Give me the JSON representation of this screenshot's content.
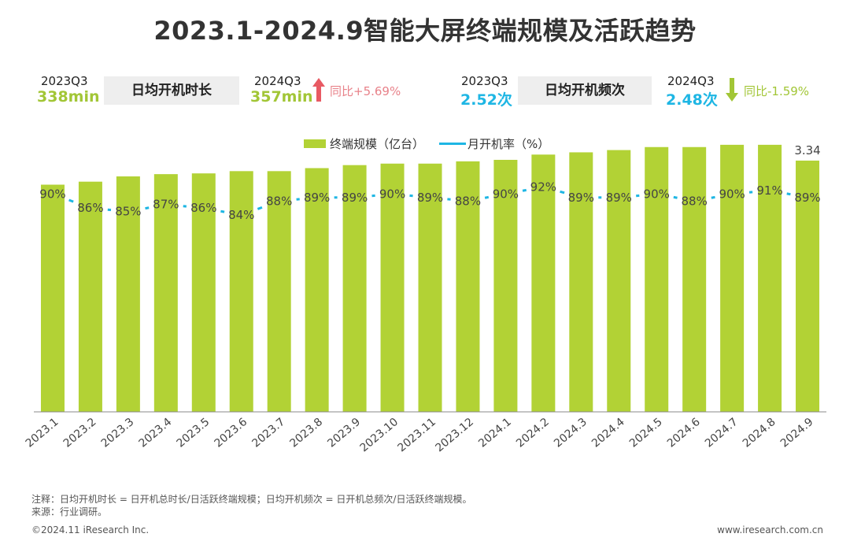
{
  "title": "2023.1-2024.9智能大屏终端规模及活跃趋势",
  "kpis": {
    "duration": {
      "base_period": "2023Q3",
      "base_value": "338min",
      "metric_label": "日均开机时长",
      "current_period": "2024Q3",
      "current_value": "357min",
      "change": "同比+5.69%",
      "direction": "up"
    },
    "frequency": {
      "base_period": "2023Q3",
      "base_value": "2.52次",
      "metric_label": "日均开机频次",
      "current_period": "2024Q3",
      "current_value": "2.48次",
      "change": "同比-1.59%",
      "direction": "down"
    }
  },
  "colors": {
    "bar": "#b2d235",
    "line": "#1eb6e4",
    "up_arrow": "#e85a63",
    "down_arrow": "#a2c636"
  },
  "chart_data": {
    "type": "bar",
    "categories": [
      "2023.1",
      "2023.2",
      "2023.3",
      "2023.4",
      "2023.5",
      "2023.6",
      "2023.7",
      "2023.8",
      "2023.9",
      "2023.10",
      "2023.11",
      "2023.12",
      "2024.1",
      "2024.2",
      "2024.3",
      "2024.4",
      "2024.5",
      "2024.6",
      "2024.7",
      "2024.8",
      "2024.9"
    ],
    "series": [
      {
        "name": "终端规模（亿台）",
        "type": "bar",
        "values": [
          3.02,
          3.06,
          3.13,
          3.16,
          3.17,
          3.2,
          3.2,
          3.24,
          3.28,
          3.3,
          3.3,
          3.33,
          3.35,
          3.42,
          3.45,
          3.48,
          3.52,
          3.52,
          3.55,
          3.55,
          3.34
        ],
        "labels": [
          "",
          "",
          "",
          "",
          "",
          "",
          "",
          "",
          "",
          "",
          "",
          "",
          "",
          "",
          "",
          "",
          "",
          "",
          "",
          "",
          "3.34"
        ]
      },
      {
        "name": "月开机率（%）",
        "type": "line",
        "style": "dashed",
        "values": [
          90,
          86,
          85,
          87,
          86,
          84,
          88,
          89,
          89,
          90,
          89,
          88,
          90,
          92,
          89,
          89,
          90,
          88,
          90,
          91,
          89
        ],
        "labels": [
          "90%",
          "86%",
          "85%",
          "87%",
          "86%",
          "84%",
          "88%",
          "89%",
          "89%",
          "90%",
          "89%",
          "88%",
          "90%",
          "92%",
          "89%",
          "89%",
          "90%",
          "88%",
          "90%",
          "91%",
          "89%"
        ]
      }
    ],
    "legend": [
      "终端规模（亿台）",
      "月开机率（%）"
    ],
    "legend_position": "top",
    "grid": false,
    "bar_ylim": [
      0,
      3.8
    ],
    "line_ylim": [
      78,
      97
    ]
  },
  "footnotes": {
    "note": "注释：日均开机时长 = 日开机总时长/日活跃终端规模；日均开机频次 = 日开机总频次/日活跃终端规模。",
    "source": "来源：行业调研。"
  },
  "footer": {
    "copyright": "©2024.11 iResearch Inc.",
    "site": "www.iresearch.com.cn"
  }
}
